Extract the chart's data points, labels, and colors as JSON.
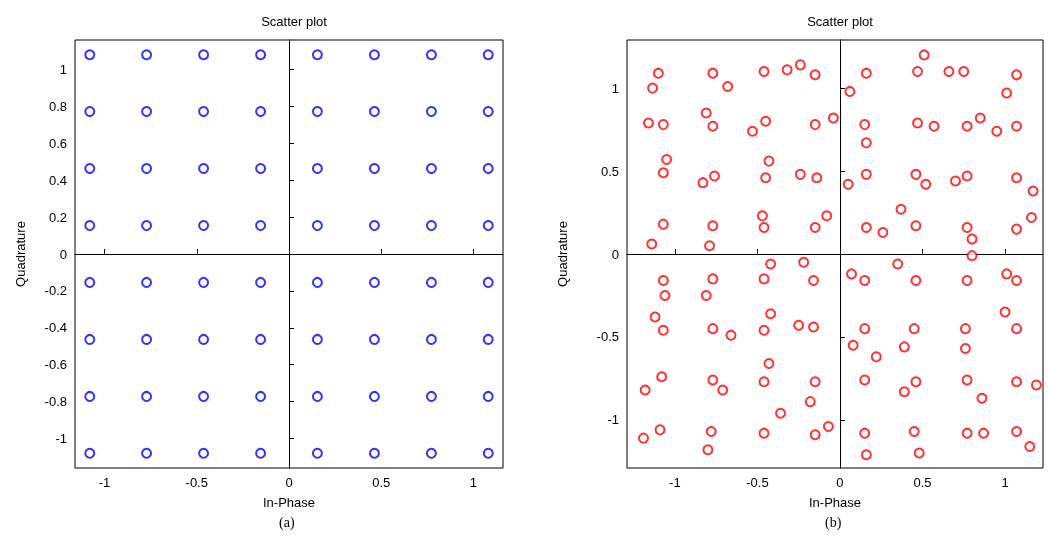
{
  "chart_data": [
    {
      "type": "scatter",
      "title": "Scatter plot",
      "xlabel": "In-Phase",
      "ylabel": "Quadrature",
      "annotations": [
        "(a)"
      ],
      "marker": "circle",
      "xlim": [
        -1.16,
        1.16
      ],
      "ylim": [
        -1.16,
        1.16
      ],
      "xticks": [
        -1,
        -0.5,
        0,
        0.5,
        1
      ],
      "yticks": [
        -1,
        -0.8,
        -0.6,
        -0.4,
        -0.2,
        0,
        0.2,
        0.4,
        0.6,
        0.8,
        1
      ],
      "series": [
        {
          "color": "#0000ff",
          "x": [
            -1.08,
            -0.772,
            -0.463,
            -0.154,
            0.154,
            0.463,
            0.772,
            1.08,
            -1.08,
            -0.772,
            -0.463,
            -0.154,
            0.154,
            0.463,
            0.772,
            1.08,
            -1.08,
            -0.772,
            -0.463,
            -0.154,
            0.154,
            0.463,
            0.772,
            1.08,
            -1.08,
            -0.772,
            -0.463,
            -0.154,
            0.154,
            0.463,
            0.772,
            1.08,
            -1.08,
            -0.772,
            -0.463,
            -0.154,
            0.154,
            0.463,
            0.772,
            1.08,
            -1.08,
            -0.772,
            -0.463,
            -0.154,
            0.154,
            0.463,
            0.772,
            1.08,
            -1.08,
            -0.772,
            -0.463,
            -0.154,
            0.154,
            0.463,
            0.772,
            1.08,
            -1.08,
            -0.772,
            -0.463,
            -0.154,
            0.154,
            0.463,
            0.772,
            1.08
          ],
          "values": [
            1.08,
            1.08,
            1.08,
            1.08,
            1.08,
            1.08,
            1.08,
            1.08,
            0.772,
            0.772,
            0.772,
            0.772,
            0.772,
            0.772,
            0.772,
            0.772,
            0.463,
            0.463,
            0.463,
            0.463,
            0.463,
            0.463,
            0.463,
            0.463,
            0.154,
            0.154,
            0.154,
            0.154,
            0.154,
            0.154,
            0.154,
            0.154,
            -0.154,
            -0.154,
            -0.154,
            -0.154,
            -0.154,
            -0.154,
            -0.154,
            -0.154,
            -0.463,
            -0.463,
            -0.463,
            -0.463,
            -0.463,
            -0.463,
            -0.463,
            -0.463,
            -0.772,
            -0.772,
            -0.772,
            -0.772,
            -0.772,
            -0.772,
            -0.772,
            -0.772,
            -1.08,
            -1.08,
            -1.08,
            -1.08,
            -1.08,
            -1.08,
            -1.08,
            -1.08
          ]
        }
      ]
    },
    {
      "type": "scatter",
      "title": "Scatter plot",
      "xlabel": "In-Phase",
      "ylabel": "Quadrature",
      "annotations": [
        "(b)"
      ],
      "marker": "circle",
      "xlim": [
        -1.29,
        1.23
      ],
      "ylim": [
        -1.29,
        1.29
      ],
      "xticks": [
        -1,
        -0.5,
        0,
        0.5,
        1
      ],
      "yticks": [
        -1,
        -0.5,
        0,
        0.5,
        1
      ],
      "series": [
        {
          "color": "#ff0000",
          "x": [
            -1.1,
            -1.135,
            -0.77,
            -0.68,
            -0.46,
            -0.32,
            -0.15,
            -0.24,
            0.16,
            0.06,
            0.47,
            0.51,
            0.75,
            0.66,
            1.07,
            1.01,
            -1.07,
            -1.16,
            -0.77,
            -0.81,
            -0.45,
            -0.53,
            -0.15,
            -0.04,
            0.15,
            0.16,
            0.47,
            0.57,
            0.77,
            0.85,
            1.07,
            0.95,
            -1.07,
            -1.05,
            -0.76,
            -0.83,
            -0.45,
            -0.43,
            -0.14,
            -0.24,
            0.16,
            0.05,
            0.46,
            0.52,
            0.77,
            0.7,
            1.07,
            1.17,
            -1.07,
            -1.14,
            -0.77,
            -0.79,
            -0.46,
            -0.47,
            -0.15,
            -0.08,
            0.16,
            0.26,
            0.46,
            0.37,
            0.77,
            0.8,
            1.07,
            1.16,
            -1.07,
            -1.06,
            -0.77,
            -0.81,
            -0.46,
            -0.42,
            -0.16,
            -0.22,
            0.15,
            0.07,
            0.46,
            0.35,
            0.77,
            0.8,
            1.07,
            1.01,
            -1.07,
            -1.12,
            -0.77,
            -0.66,
            -0.46,
            -0.42,
            -0.16,
            -0.25,
            0.15,
            0.08,
            0.45,
            0.39,
            0.76,
            0.76,
            1.07,
            1.0,
            -1.08,
            -1.18,
            -0.77,
            -0.71,
            -0.46,
            -0.43,
            -0.15,
            -0.18,
            0.15,
            0.22,
            0.46,
            0.39,
            0.77,
            0.86,
            1.07,
            1.19,
            -1.09,
            -1.19,
            -0.78,
            -0.8,
            -0.46,
            -0.36,
            -0.15,
            -0.07,
            0.15,
            0.16,
            0.45,
            0.48,
            0.77,
            0.87,
            1.07,
            1.15
          ],
          "values": [
            1.09,
            1.0,
            1.09,
            1.01,
            1.1,
            1.11,
            1.08,
            1.14,
            1.09,
            0.98,
            1.1,
            1.2,
            1.1,
            1.1,
            1.08,
            0.97,
            0.78,
            0.79,
            0.77,
            0.85,
            0.8,
            0.74,
            0.78,
            0.82,
            0.78,
            0.67,
            0.79,
            0.77,
            0.77,
            0.82,
            0.77,
            0.74,
            0.49,
            0.57,
            0.47,
            0.43,
            0.46,
            0.56,
            0.46,
            0.48,
            0.48,
            0.42,
            0.48,
            0.42,
            0.47,
            0.44,
            0.46,
            0.38,
            0.18,
            0.06,
            0.17,
            0.05,
            0.16,
            0.23,
            0.16,
            0.23,
            0.16,
            0.13,
            0.17,
            0.27,
            0.16,
            0.09,
            0.15,
            0.22,
            -0.16,
            -0.25,
            -0.15,
            -0.25,
            -0.15,
            -0.06,
            -0.16,
            -0.05,
            -0.16,
            -0.12,
            -0.16,
            -0.06,
            -0.16,
            -0.01,
            -0.16,
            -0.12,
            -0.46,
            -0.38,
            -0.45,
            -0.49,
            -0.46,
            -0.36,
            -0.44,
            -0.43,
            -0.45,
            -0.55,
            -0.45,
            -0.56,
            -0.45,
            -0.57,
            -0.45,
            -0.35,
            -0.74,
            -0.82,
            -0.76,
            -0.82,
            -0.77,
            -0.66,
            -0.77,
            -0.89,
            -0.76,
            -0.62,
            -0.77,
            -0.83,
            -0.76,
            -0.87,
            -0.77,
            -0.79,
            -1.06,
            -1.11,
            -1.07,
            -1.18,
            -1.08,
            -0.96,
            -1.09,
            -1.04,
            -1.08,
            -1.21,
            -1.07,
            -1.2,
            -1.08,
            -1.08,
            -1.07,
            -1.16
          ]
        }
      ]
    }
  ]
}
